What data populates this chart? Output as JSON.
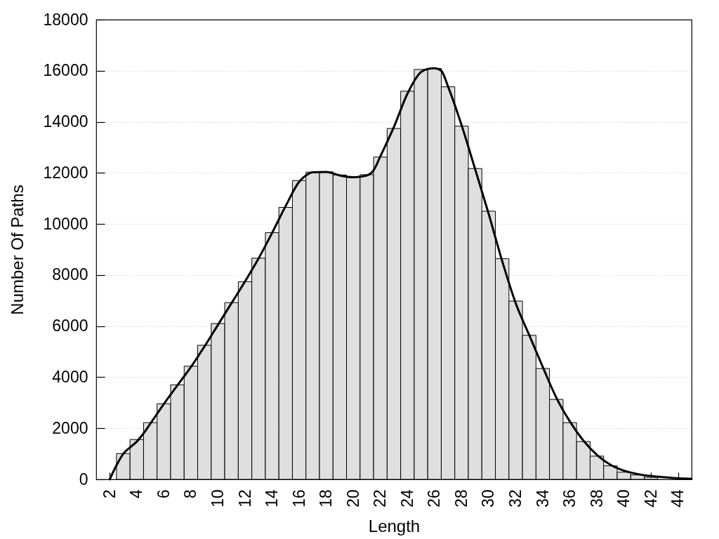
{
  "chart_data": {
    "type": "bar",
    "xlabel": "Length",
    "ylabel": "Number Of Paths",
    "xlim": [
      1,
      45
    ],
    "xticks": [
      2,
      4,
      6,
      8,
      10,
      12,
      14,
      16,
      18,
      20,
      22,
      24,
      26,
      28,
      30,
      32,
      34,
      36,
      38,
      40,
      42,
      44
    ],
    "ylim": [
      0,
      18000
    ],
    "yticks": [
      0,
      2000,
      4000,
      6000,
      8000,
      10000,
      12000,
      14000,
      16000,
      18000
    ],
    "grid": "y",
    "series": [
      {
        "color": "#dfdfdf",
        "x": [
          3,
          4,
          5,
          6,
          7,
          8,
          9,
          10,
          11,
          12,
          13,
          14,
          15,
          16,
          17,
          18,
          19,
          20,
          21,
          22,
          23,
          24,
          25,
          26,
          27,
          28,
          29,
          30,
          31,
          32,
          33,
          34,
          35,
          36,
          37,
          38,
          39,
          40,
          41,
          42
        ],
        "values": [
          1010,
          1560,
          2220,
          2960,
          3700,
          4430,
          5250,
          6100,
          6920,
          7740,
          8660,
          9660,
          10650,
          11700,
          12030,
          12040,
          11920,
          11850,
          11930,
          12620,
          13740,
          15200,
          16050,
          16090,
          15370,
          13830,
          12170,
          10500,
          8640,
          6980,
          5640,
          4340,
          3130,
          2220,
          1480,
          910,
          530,
          280,
          170,
          80
        ]
      },
      {
        "type": "line",
        "color": "#000000",
        "x": [
          2,
          2.5,
          3,
          3.5,
          4,
          4.5,
          5,
          6,
          7,
          8,
          9,
          10,
          11,
          12,
          13,
          14,
          15,
          16,
          16.5,
          17,
          18,
          19,
          20,
          21,
          21.5,
          22,
          23,
          24,
          25,
          25.5,
          26,
          26.5,
          27,
          28,
          29,
          30,
          31,
          32,
          33,
          34,
          35,
          36,
          37,
          38,
          39,
          40,
          41,
          42,
          43,
          44,
          45
        ],
        "values": [
          0,
          550,
          1000,
          1250,
          1480,
          1800,
          2180,
          2950,
          3680,
          4400,
          5200,
          6050,
          6900,
          7750,
          8650,
          9650,
          10700,
          11650,
          11900,
          12020,
          12040,
          11900,
          11830,
          11900,
          12100,
          12650,
          13800,
          15100,
          15950,
          16070,
          16100,
          16000,
          15380,
          13870,
          12150,
          10400,
          8550,
          6900,
          5650,
          4400,
          3200,
          2270,
          1520,
          960,
          570,
          340,
          210,
          130,
          80,
          40,
          20
        ]
      }
    ]
  }
}
